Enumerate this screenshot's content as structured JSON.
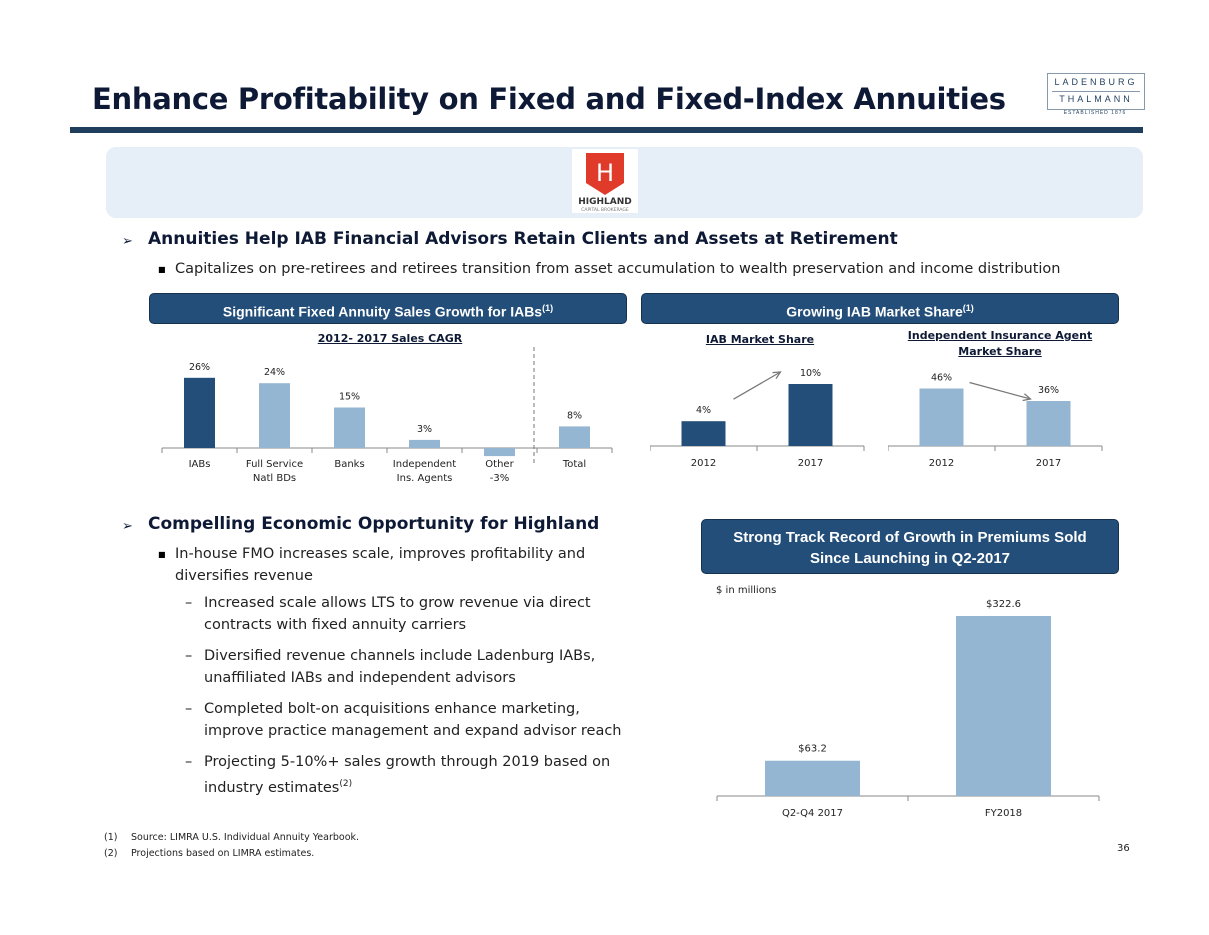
{
  "title": "Enhance Profitability on Fixed and Fixed-Index Annuities",
  "logo": {
    "line1": "LADENBURG",
    "line2": "THALMANN",
    "est": "ESTABLISHED 1876"
  },
  "highland_logo": {
    "name": "HIGHLAND",
    "sub": "CAPITAL BROKERAGE",
    "letter": "H"
  },
  "section1": {
    "heading": "Annuities Help IAB Financial Advisors Retain Clients and Assets at Retirement",
    "bullet": "Capitalizes on pre-retirees and retirees transition from asset accumulation to wealth preservation and income distribution"
  },
  "box_left": {
    "label": "Significant Fixed Annuity Sales Growth for IABs",
    "sup": "(1)"
  },
  "box_right": {
    "label": "Growing IAB Market Share",
    "sup": "(1)"
  },
  "box_track": {
    "line1": "Strong Track Record of Growth in Premiums Sold",
    "line2": "Since Launching in Q2-2017"
  },
  "section2": {
    "heading": "Compelling Economic Opportunity for Highland",
    "bullet_line1": "In-house FMO increases scale, improves profitability and",
    "bullet_line2": "diversifies revenue",
    "subs": [
      {
        "line1": "Increased scale allows LTS to grow revenue via direct",
        "line2": "contracts with fixed annuity carriers"
      },
      {
        "line1": "Diversified revenue channels include Ladenburg IABs,",
        "line2": "unaffiliated IABs and independent advisors"
      },
      {
        "line1": "Completed bolt-on acquisitions enhance marketing,",
        "line2": "improve practice management and expand advisor reach"
      },
      {
        "line1": "Projecting 5-10%+ sales growth through 2019 based on",
        "line2": "industry estimates",
        "sup": "(2)"
      }
    ]
  },
  "footnotes": {
    "n1": {
      "marker": "(1)",
      "text": "Source: LIMRA U.S. Individual Annuity Yearbook."
    },
    "n2": {
      "marker": "(2)",
      "text": "Projections based on LIMRA estimates."
    }
  },
  "page_number": "36",
  "colors": {
    "dark_bar": "#234e79",
    "light_bar": "#94b6d2",
    "title_navy": "#0e1a35",
    "highland_red": "#e03a2b"
  },
  "chart_data": [
    {
      "type": "bar",
      "title": "2012- 2017 Sales CAGR",
      "categories": [
        "IABs",
        "Full Service Natl BDs",
        "Banks",
        "Independent Ins. Agents",
        "Other",
        "Total"
      ],
      "category_lines": [
        [
          "IABs"
        ],
        [
          "Full Service",
          "Natl BDs"
        ],
        [
          "Banks"
        ],
        [
          "Independent",
          "Ins. Agents"
        ],
        [
          "Other",
          "-3%"
        ],
        [
          "Total"
        ]
      ],
      "values": [
        26,
        24,
        15,
        3,
        -3,
        8
      ],
      "labels": [
        "26%",
        "24%",
        "15%",
        "3%",
        "",
        "8%"
      ],
      "highlight": [
        true,
        false,
        false,
        false,
        false,
        false
      ],
      "ylim": [
        -3,
        26
      ],
      "separator_before_index": 5
    },
    {
      "type": "bar",
      "title": "IAB Market Share",
      "categories": [
        "2012",
        "2017"
      ],
      "values": [
        4,
        10
      ],
      "labels": [
        "4%",
        "10%"
      ],
      "trend": "up"
    },
    {
      "type": "bar",
      "title_line1": "Independent Insurance Agent",
      "title_line2": "Market Share",
      "categories": [
        "2012",
        "2017"
      ],
      "values": [
        46,
        36
      ],
      "labels": [
        "46%",
        "36%"
      ],
      "trend": "down"
    },
    {
      "type": "bar",
      "unit_note": "$ in millions",
      "categories": [
        "Q2-Q4 2017",
        "FY2018"
      ],
      "values": [
        63.2,
        322.6
      ],
      "labels": [
        "$63.2",
        "$322.6"
      ]
    }
  ]
}
